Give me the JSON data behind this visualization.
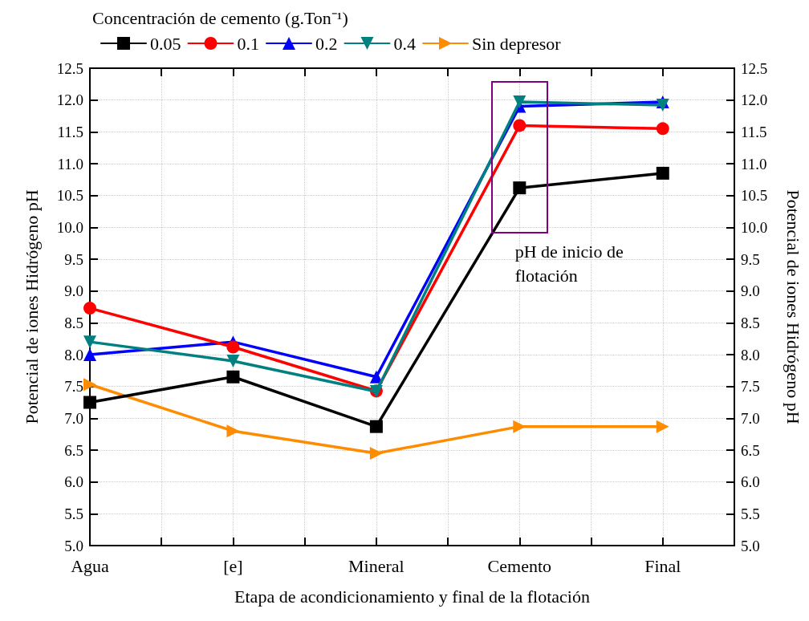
{
  "chart_data": {
    "type": "line",
    "xlabel": "Etapa de acondicionamiento y final de la flotación",
    "ylabel": "Potencial de iones Hidrógeno pH",
    "y2label": "Potencial de iones Hidrógeno pH",
    "legend_title": "Concentración de cemento (g.Ton⁻¹)",
    "categories": [
      "Agua",
      "[e]",
      "Mineral",
      "Cemento",
      "Final"
    ],
    "series": [
      {
        "name": "0.05",
        "color": "#000000",
        "marker": "square",
        "values": [
          7.25,
          7.65,
          6.87,
          10.62,
          10.85
        ]
      },
      {
        "name": "0.1",
        "color": "#ff0000",
        "marker": "circle",
        "values": [
          8.73,
          8.12,
          7.43,
          11.6,
          11.55
        ]
      },
      {
        "name": "0.2",
        "color": "#0000ff",
        "marker": "triangle",
        "values": [
          8.0,
          8.2,
          7.65,
          11.9,
          11.97
        ]
      },
      {
        "name": "0.4",
        "color": "#008080",
        "marker": "triangle_down",
        "values": [
          8.2,
          7.9,
          7.42,
          11.97,
          11.92
        ]
      },
      {
        "name": "Sin depresor",
        "color": "#ff8c00",
        "marker": "triangle_right",
        "values": [
          7.53,
          6.8,
          6.45,
          6.87,
          6.87
        ]
      }
    ],
    "ylim": [
      5.0,
      12.5
    ],
    "yticks": [
      {
        "value": 5,
        "label": "5.0"
      },
      5.5,
      {
        "value": 6,
        "label": "6.0"
      },
      6.5,
      {
        "value": 7,
        "label": "7.0"
      },
      7.5,
      {
        "value": 8,
        "label": "8.0"
      },
      8.5,
      {
        "value": 9,
        "label": "9.0"
      },
      9.5,
      {
        "value": 10,
        "label": "10.0"
      },
      10.5,
      {
        "value": 11,
        "label": "11.0"
      },
      11.5,
      {
        "value": 12,
        "label": "12.0"
      },
      12.5
    ],
    "y2lim": [
      5.0,
      12.5
    ],
    "y2ticks": [
      {
        "value": 5,
        "label": "5.0"
      },
      5.5,
      {
        "value": 6,
        "label": "6.0"
      },
      6.5,
      {
        "value": 7,
        "label": "7.0"
      },
      7.5,
      {
        "value": 8,
        "label": "8.0"
      },
      8.5,
      {
        "value": 9,
        "label": "9.0"
      },
      9.5,
      {
        "value": 10,
        "label": "10.0"
      },
      10.5,
      {
        "value": 11,
        "label": "11.0"
      },
      11.5,
      {
        "value": 12,
        "label": "12.0"
      },
      12.5
    ],
    "annotations": [
      "pH de inicio de flotación"
    ],
    "grid": true,
    "legend": "top",
    "line_style": "solid"
  }
}
